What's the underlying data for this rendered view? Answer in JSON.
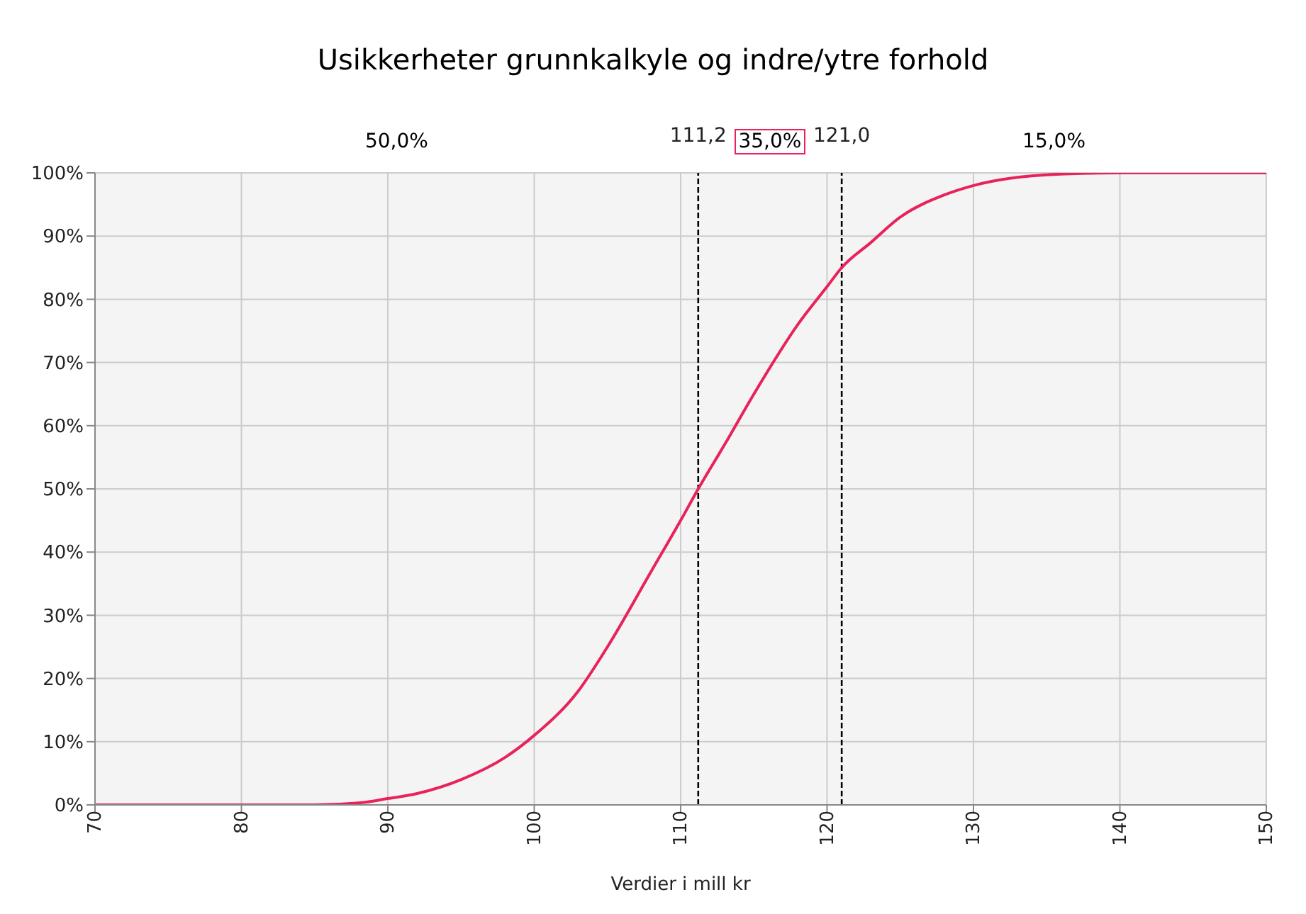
{
  "chart_data": {
    "type": "line",
    "title": "Usikkerheter grunnkalkyle og indre/ytre forhold",
    "xlabel": "Verdier i mill kr",
    "x": [
      70,
      85,
      88,
      90,
      92,
      95,
      98,
      100,
      103,
      105,
      108,
      110,
      111.2,
      113,
      115,
      118,
      120,
      121,
      123,
      125,
      128,
      130,
      133,
      135,
      140,
      150
    ],
    "series": [
      {
        "color": "#e8225a",
        "values": [
          0,
          0,
          0.3,
          1,
          1.8,
          4,
          7.5,
          11,
          18,
          25,
          37,
          45,
          50,
          57,
          65,
          76,
          82,
          85,
          89,
          93,
          96.5,
          98,
          99.3,
          99.7,
          100,
          100
        ]
      }
    ],
    "xlim": [
      70,
      150
    ],
    "xticks": [
      70,
      80,
      90,
      100,
      110,
      120,
      130,
      140,
      150
    ],
    "ylim": [
      0,
      100
    ],
    "yticks": [
      {
        "value": 0,
        "label": "0%"
      },
      {
        "value": 10,
        "label": "10%"
      },
      {
        "value": 20,
        "label": "20%"
      },
      {
        "value": 30,
        "label": "30%"
      },
      {
        "value": 40,
        "label": "40%"
      },
      {
        "value": 50,
        "label": "50%"
      },
      {
        "value": 60,
        "label": "60%"
      },
      {
        "value": 70,
        "label": "70%"
      },
      {
        "value": 80,
        "label": "80%"
      },
      {
        "value": 90,
        "label": "90%"
      },
      {
        "value": 100,
        "label": "100%"
      }
    ],
    "ref_lines": [
      {
        "axis": "x",
        "value": 111.2,
        "label": "111,2",
        "color": "#000000",
        "line_style": "dashed"
      },
      {
        "axis": "x",
        "value": 121,
        "label": "121,0",
        "color": "#000000",
        "line_style": "dashed"
      }
    ],
    "annotations": [
      "50,0%",
      "35,0%",
      "15,0%"
    ],
    "grid": true,
    "marker": "none",
    "line_style": "solid"
  }
}
